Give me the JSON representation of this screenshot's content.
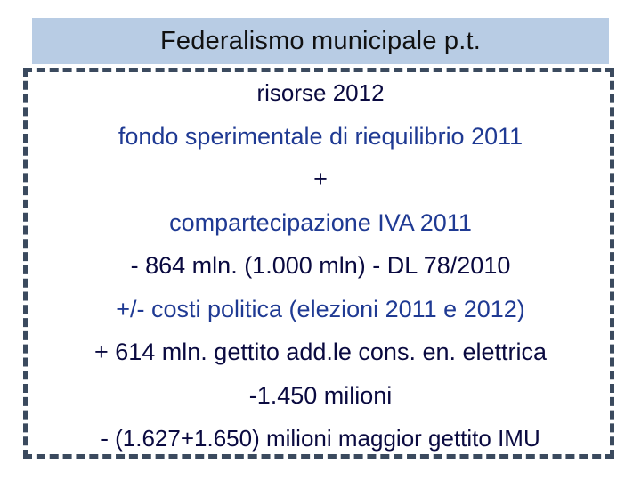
{
  "title": "Federalismo municipale p.t.",
  "lines": [
    "risorse 2012",
    "fondo sperimentale di riequilibrio  2011",
    "+",
    "compartecipazione IVA 2011",
    "- 864 mln. (1.000 mln) - DL 78/2010",
    "+/- costi politica (elezioni 2011 e 2012)",
    "+ 614 mln. gettito add.le cons. en. elettrica",
    "-1.450 milioni",
    "- (1.627+1.650) milioni  maggior gettito IMU"
  ],
  "colors": {
    "title_bar": "#b8cce4",
    "text_blue": "#1f3a93",
    "text_dark": "#0a0a40",
    "frame": "#3b4a5e"
  }
}
